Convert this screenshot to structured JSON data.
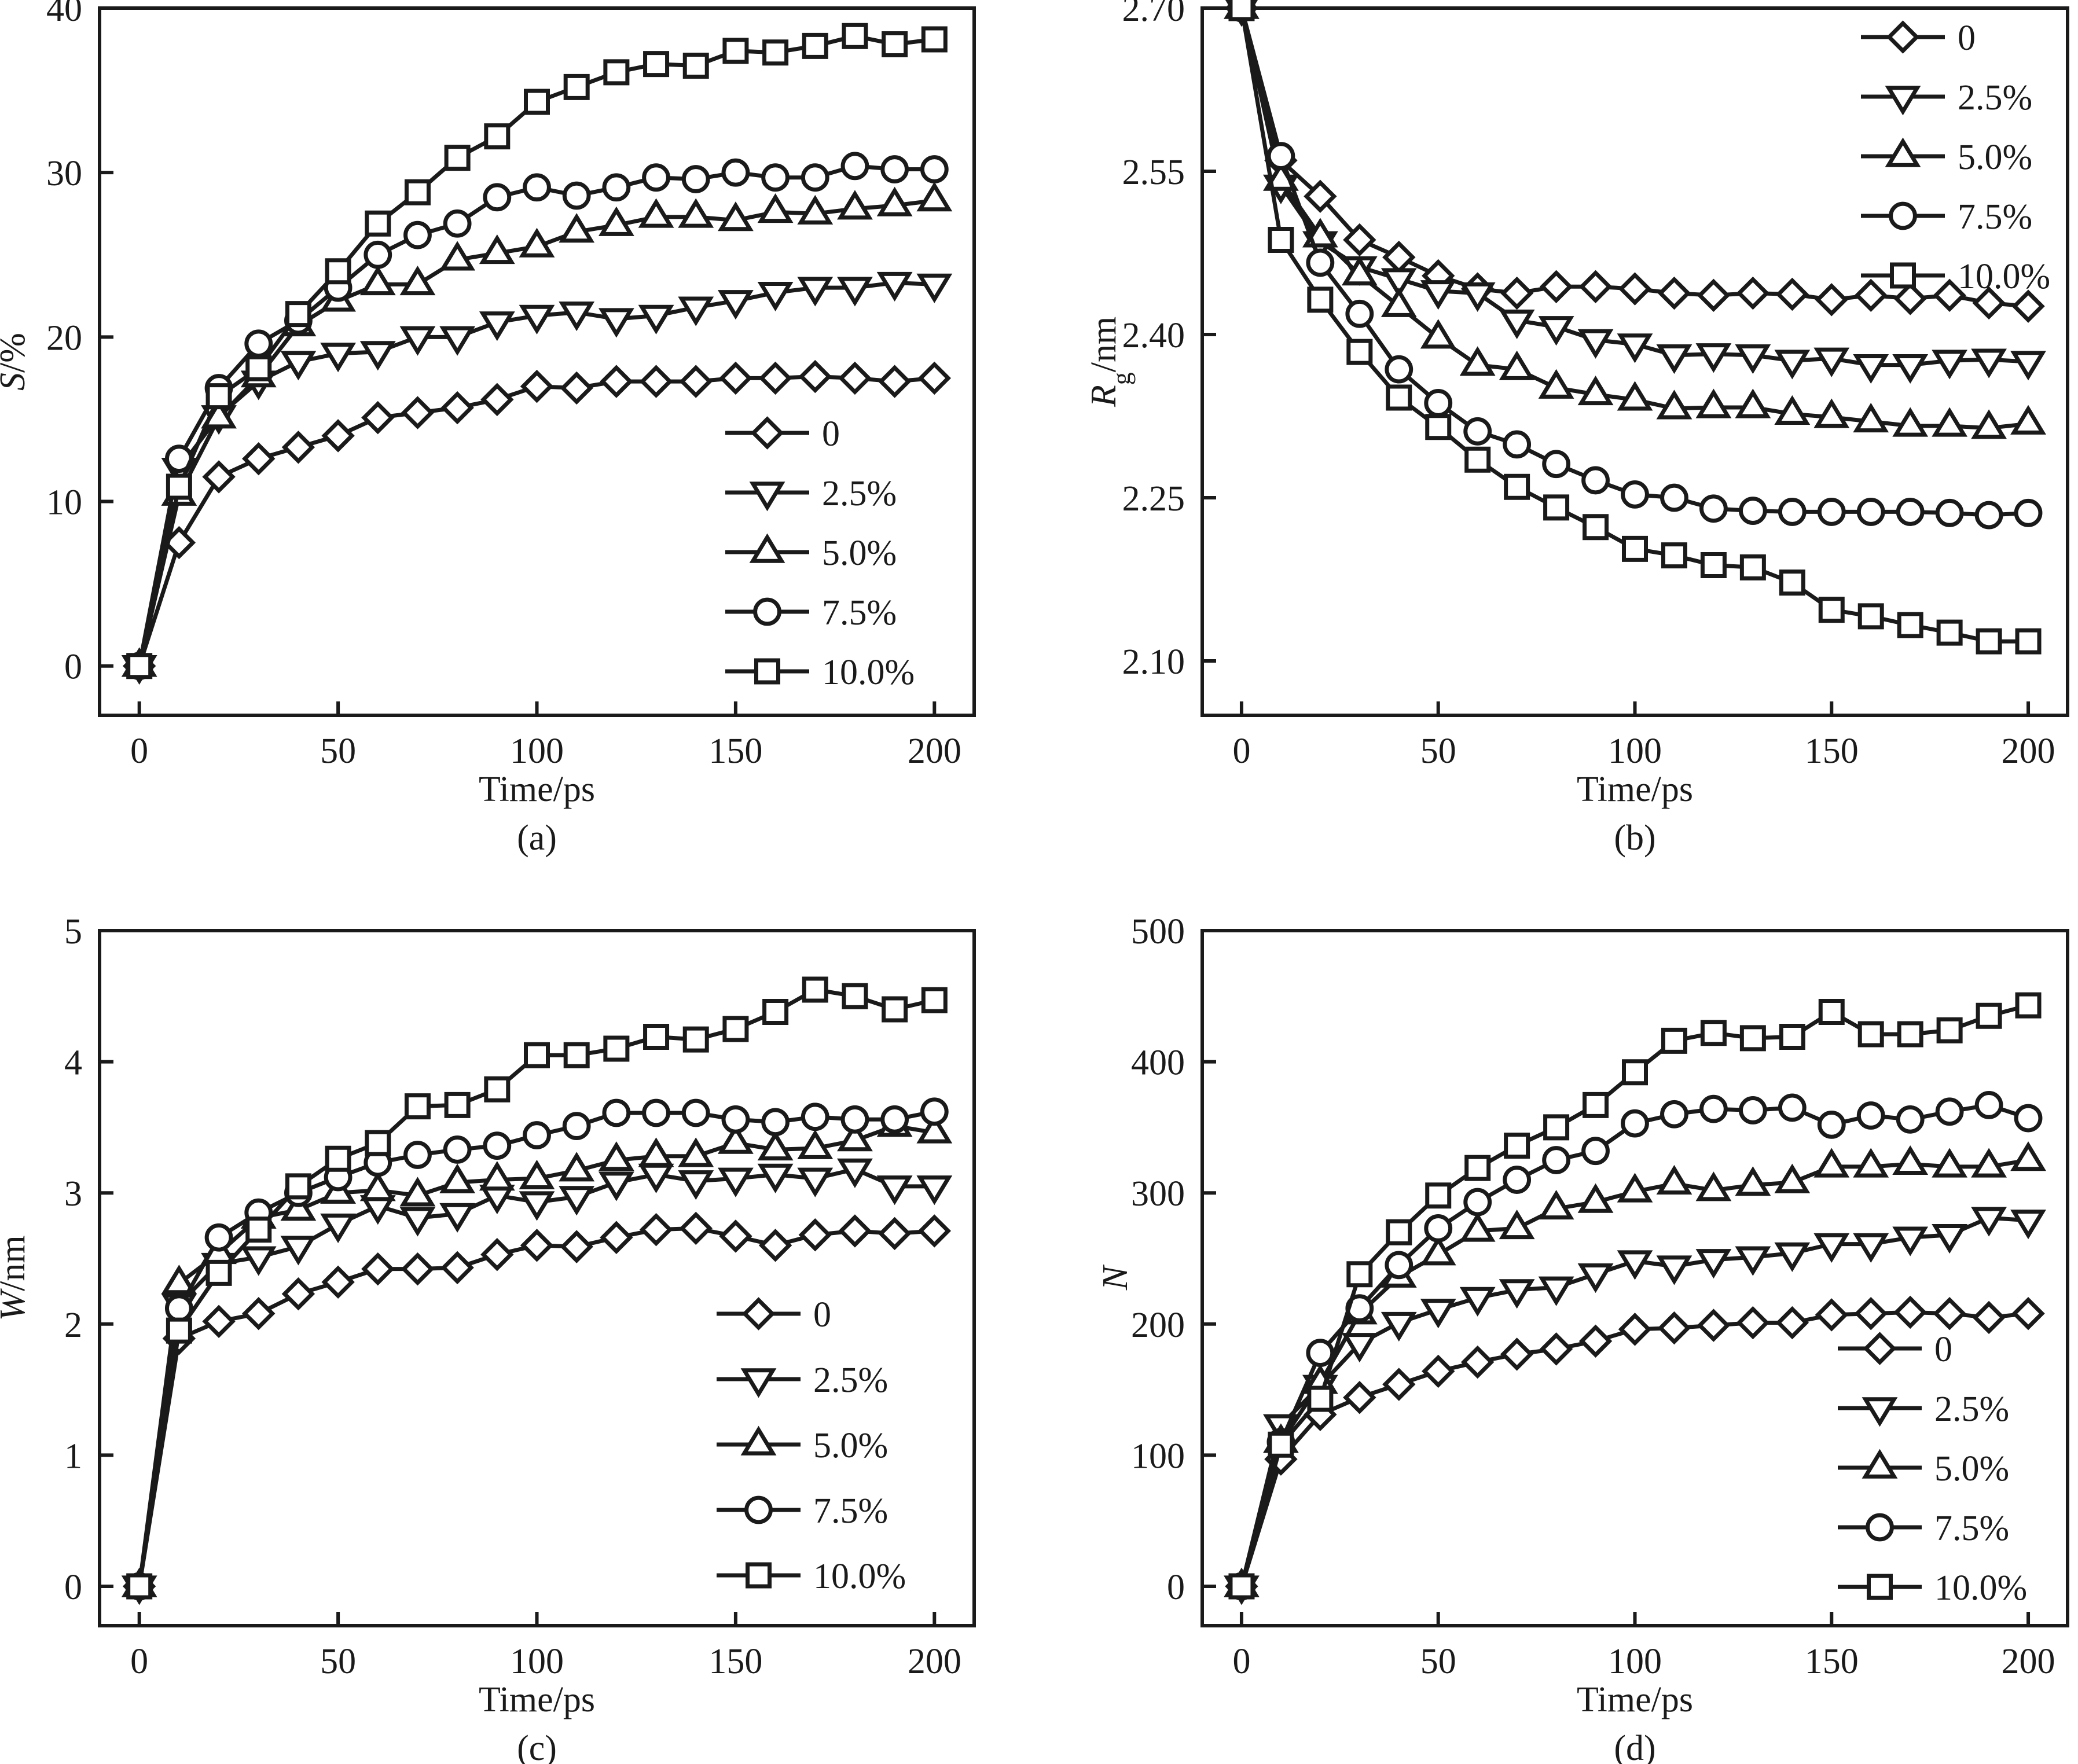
{
  "figure": {
    "legend_labels": [
      "0",
      "2.5%",
      "5.0%",
      "7.5%",
      "10.0%"
    ],
    "marker_shapes": [
      "diamond",
      "triangle-down",
      "triangle-up",
      "circle",
      "square"
    ]
  },
  "chart_data": [
    {
      "id": "a",
      "type": "line",
      "panel_label": "(a)",
      "title": "",
      "xlabel": "Time/ps",
      "ylabel_main": "S",
      "ylabel_sub": "",
      "ylabel_unit": "/%",
      "xlim": [
        -10,
        210
      ],
      "ylim": [
        -3,
        40
      ],
      "xticks": [
        0,
        50,
        100,
        150,
        200
      ],
      "xtick_labels": [
        "0",
        "50",
        "100",
        "150",
        "200"
      ],
      "yticks": [
        0,
        10,
        20,
        30,
        40
      ],
      "ytick_labels": [
        "0",
        "10",
        "20",
        "30",
        "40"
      ],
      "grid": false,
      "legend_position": "lower-right",
      "x": [
        0,
        10,
        20,
        30,
        40,
        50,
        60,
        70,
        80,
        90,
        100,
        110,
        120,
        130,
        140,
        150,
        160,
        170,
        180,
        190,
        200
      ],
      "series": [
        {
          "name": "0",
          "marker": "diamond",
          "values": [
            0,
            7.5,
            11.5,
            12.6,
            13.3,
            14.0,
            15.1,
            15.4,
            15.7,
            16.2,
            17.0,
            16.9,
            17.3,
            17.3,
            17.3,
            17.5,
            17.5,
            17.6,
            17.5,
            17.3,
            17.5
          ]
        },
        {
          "name": "2.5%",
          "marker": "triangle-down",
          "values": [
            0,
            12.0,
            15.2,
            17.3,
            18.5,
            19.0,
            19.1,
            20.0,
            20.0,
            20.9,
            21.3,
            21.5,
            21.1,
            21.3,
            21.8,
            22.2,
            22.7,
            23.0,
            23.0,
            23.3,
            23.2
          ]
        },
        {
          "name": "5.0%",
          "marker": "triangle-up",
          "values": [
            0,
            10.4,
            15.1,
            17.6,
            20.7,
            22.2,
            23.2,
            23.2,
            24.7,
            25.1,
            25.5,
            26.4,
            26.8,
            27.3,
            27.3,
            27.1,
            27.6,
            27.5,
            27.8,
            28.0,
            28.3
          ]
        },
        {
          "name": "7.5%",
          "marker": "circle",
          "values": [
            0,
            12.6,
            16.9,
            19.6,
            21.0,
            23.0,
            25.0,
            26.2,
            26.9,
            28.5,
            29.1,
            28.6,
            29.1,
            29.7,
            29.6,
            30.0,
            29.7,
            29.7,
            30.4,
            30.2,
            30.2
          ]
        },
        {
          "name": "10.0%",
          "marker": "square",
          "values": [
            0,
            10.9,
            16.4,
            18.1,
            21.4,
            24.0,
            26.9,
            28.8,
            30.9,
            32.2,
            34.3,
            35.2,
            36.1,
            36.6,
            36.5,
            37.4,
            37.3,
            37.7,
            38.3,
            37.8,
            38.1
          ]
        }
      ]
    },
    {
      "id": "b",
      "type": "line",
      "panel_label": "(b)",
      "title": "",
      "xlabel": "Time/ps",
      "ylabel_main": "R",
      "ylabel_sub": "g",
      "ylabel_unit": "/nm",
      "xlim": [
        -10,
        210
      ],
      "ylim": [
        2.05,
        2.7
      ],
      "xticks": [
        0,
        50,
        100,
        150,
        200
      ],
      "xtick_labels": [
        "0",
        "50",
        "100",
        "150",
        "200"
      ],
      "yticks": [
        2.1,
        2.25,
        2.4,
        2.55,
        2.7
      ],
      "ytick_labels": [
        "2.10",
        "2.25",
        "2.40",
        "2.55",
        "2.70"
      ],
      "grid": false,
      "legend_position": "top-right",
      "x": [
        0,
        10,
        20,
        30,
        40,
        50,
        60,
        70,
        80,
        90,
        100,
        110,
        120,
        130,
        140,
        150,
        160,
        170,
        180,
        190,
        200
      ],
      "series": [
        {
          "name": "0",
          "marker": "diamond",
          "values": [
            2.7,
            2.56,
            2.527,
            2.487,
            2.471,
            2.454,
            2.442,
            2.438,
            2.444,
            2.444,
            2.442,
            2.438,
            2.436,
            2.438,
            2.437,
            2.432,
            2.436,
            2.433,
            2.436,
            2.429,
            2.426
          ]
        },
        {
          "name": "2.5%",
          "marker": "triangle-down",
          "values": [
            2.7,
            2.537,
            2.485,
            2.462,
            2.451,
            2.44,
            2.438,
            2.413,
            2.407,
            2.395,
            2.391,
            2.381,
            2.382,
            2.381,
            2.376,
            2.378,
            2.372,
            2.372,
            2.376,
            2.377,
            2.375
          ]
        },
        {
          "name": "5.0%",
          "marker": "triangle-up",
          "values": [
            2.7,
            2.542,
            2.49,
            2.455,
            2.426,
            2.397,
            2.372,
            2.368,
            2.351,
            2.345,
            2.34,
            2.332,
            2.333,
            2.333,
            2.327,
            2.324,
            2.32,
            2.316,
            2.316,
            2.314,
            2.318
          ]
        },
        {
          "name": "7.5%",
          "marker": "circle",
          "values": [
            2.7,
            2.564,
            2.466,
            2.419,
            2.368,
            2.337,
            2.311,
            2.299,
            2.281,
            2.266,
            2.253,
            2.25,
            2.24,
            2.238,
            2.237,
            2.237,
            2.237,
            2.237,
            2.236,
            2.234,
            2.236
          ]
        },
        {
          "name": "10.0%",
          "marker": "square",
          "values": [
            2.7,
            2.487,
            2.432,
            2.384,
            2.342,
            2.315,
            2.285,
            2.26,
            2.241,
            2.223,
            2.203,
            2.197,
            2.188,
            2.186,
            2.172,
            2.147,
            2.141,
            2.133,
            2.126,
            2.118,
            2.118
          ]
        }
      ]
    },
    {
      "id": "c",
      "type": "line",
      "panel_label": "(c)",
      "title": "",
      "xlabel": "Time/ps",
      "ylabel_main": "W",
      "ylabel_sub": "",
      "ylabel_unit": "/nm",
      "xlim": [
        -10,
        210
      ],
      "ylim": [
        -0.3,
        5
      ],
      "xticks": [
        0,
        50,
        100,
        150,
        200
      ],
      "xtick_labels": [
        "0",
        "50",
        "100",
        "150",
        "200"
      ],
      "yticks": [
        0,
        1,
        2,
        3,
        4,
        5
      ],
      "ytick_labels": [
        "0",
        "1",
        "2",
        "3",
        "4",
        "5"
      ],
      "grid": false,
      "legend_position": "lower-right",
      "x": [
        0,
        10,
        20,
        30,
        40,
        50,
        60,
        70,
        80,
        90,
        100,
        110,
        120,
        130,
        140,
        150,
        160,
        170,
        180,
        190,
        200
      ],
      "series": [
        {
          "name": "0",
          "marker": "diamond",
          "values": [
            0,
            1.89,
            2.02,
            2.08,
            2.23,
            2.32,
            2.42,
            2.42,
            2.43,
            2.53,
            2.6,
            2.59,
            2.66,
            2.72,
            2.73,
            2.67,
            2.6,
            2.68,
            2.71,
            2.69,
            2.71
          ]
        },
        {
          "name": "2.5%",
          "marker": "triangle-down",
          "values": [
            0,
            2.15,
            2.46,
            2.51,
            2.59,
            2.76,
            2.9,
            2.81,
            2.84,
            2.98,
            2.93,
            2.97,
            3.08,
            3.14,
            3.09,
            3.11,
            3.14,
            3.11,
            3.18,
            3.05,
            3.05
          ]
        },
        {
          "name": "5.0%",
          "marker": "triangle-up",
          "values": [
            0,
            2.31,
            2.54,
            2.81,
            2.87,
            3.0,
            3.02,
            2.98,
            3.08,
            3.1,
            3.11,
            3.17,
            3.25,
            3.28,
            3.28,
            3.38,
            3.33,
            3.34,
            3.4,
            3.51,
            3.46
          ]
        },
        {
          "name": "7.5%",
          "marker": "circle",
          "values": [
            0,
            2.12,
            2.66,
            2.85,
            3.0,
            3.12,
            3.23,
            3.29,
            3.33,
            3.36,
            3.44,
            3.51,
            3.61,
            3.61,
            3.61,
            3.56,
            3.54,
            3.58,
            3.56,
            3.56,
            3.62
          ]
        },
        {
          "name": "10.0%",
          "marker": "square",
          "values": [
            0,
            1.95,
            2.39,
            2.72,
            3.05,
            3.26,
            3.38,
            3.66,
            3.67,
            3.79,
            4.05,
            4.05,
            4.1,
            4.19,
            4.17,
            4.25,
            4.38,
            4.55,
            4.5,
            4.4,
            4.47
          ]
        }
      ]
    },
    {
      "id": "d",
      "type": "line",
      "panel_label": "(d)",
      "title": "",
      "xlabel": "Time/ps",
      "ylabel_main": "N",
      "ylabel_sub": "",
      "ylabel_unit": "",
      "xlim": [
        -10,
        210
      ],
      "ylim": [
        -30,
        500
      ],
      "xticks": [
        0,
        50,
        100,
        150,
        200
      ],
      "xtick_labels": [
        "0",
        "50",
        "100",
        "150",
        "200"
      ],
      "yticks": [
        0,
        100,
        200,
        300,
        400,
        500
      ],
      "ytick_labels": [
        "0",
        "100",
        "200",
        "300",
        "400",
        "500"
      ],
      "grid": false,
      "legend_position": "lower-right",
      "x": [
        0,
        10,
        20,
        30,
        40,
        50,
        60,
        70,
        80,
        90,
        100,
        110,
        120,
        130,
        140,
        150,
        160,
        170,
        180,
        190,
        200
      ],
      "series": [
        {
          "name": "0",
          "marker": "diamond",
          "values": [
            0,
            97,
            131,
            144,
            154,
            164,
            171,
            177,
            181,
            187,
            196,
            197,
            199,
            201,
            201,
            207,
            208,
            209,
            208,
            205,
            208
          ]
        },
        {
          "name": "2.5%",
          "marker": "triangle-down",
          "values": [
            0,
            123,
            153,
            185,
            201,
            211,
            220,
            226,
            228,
            238,
            248,
            244,
            249,
            251,
            254,
            261,
            261,
            266,
            268,
            281,
            279
          ]
        },
        {
          "name": "5.0%",
          "marker": "triangle-up",
          "values": [
            0,
            110,
            155,
            208,
            236,
            253,
            271,
            273,
            288,
            293,
            301,
            307,
            302,
            306,
            308,
            320,
            320,
            322,
            320,
            320,
            325
          ]
        },
        {
          "name": "7.5%",
          "marker": "circle",
          "values": [
            0,
            110,
            178,
            212,
            245,
            273,
            293,
            310,
            325,
            332,
            353,
            360,
            364,
            363,
            365,
            352,
            359,
            356,
            362,
            367,
            357
          ]
        },
        {
          "name": "10.0%",
          "marker": "square",
          "values": [
            0,
            108,
            143,
            238,
            270,
            298,
            319,
            336,
            350,
            367,
            392,
            416,
            422,
            418,
            419,
            438,
            421,
            421,
            424,
            435,
            443
          ]
        }
      ]
    }
  ]
}
